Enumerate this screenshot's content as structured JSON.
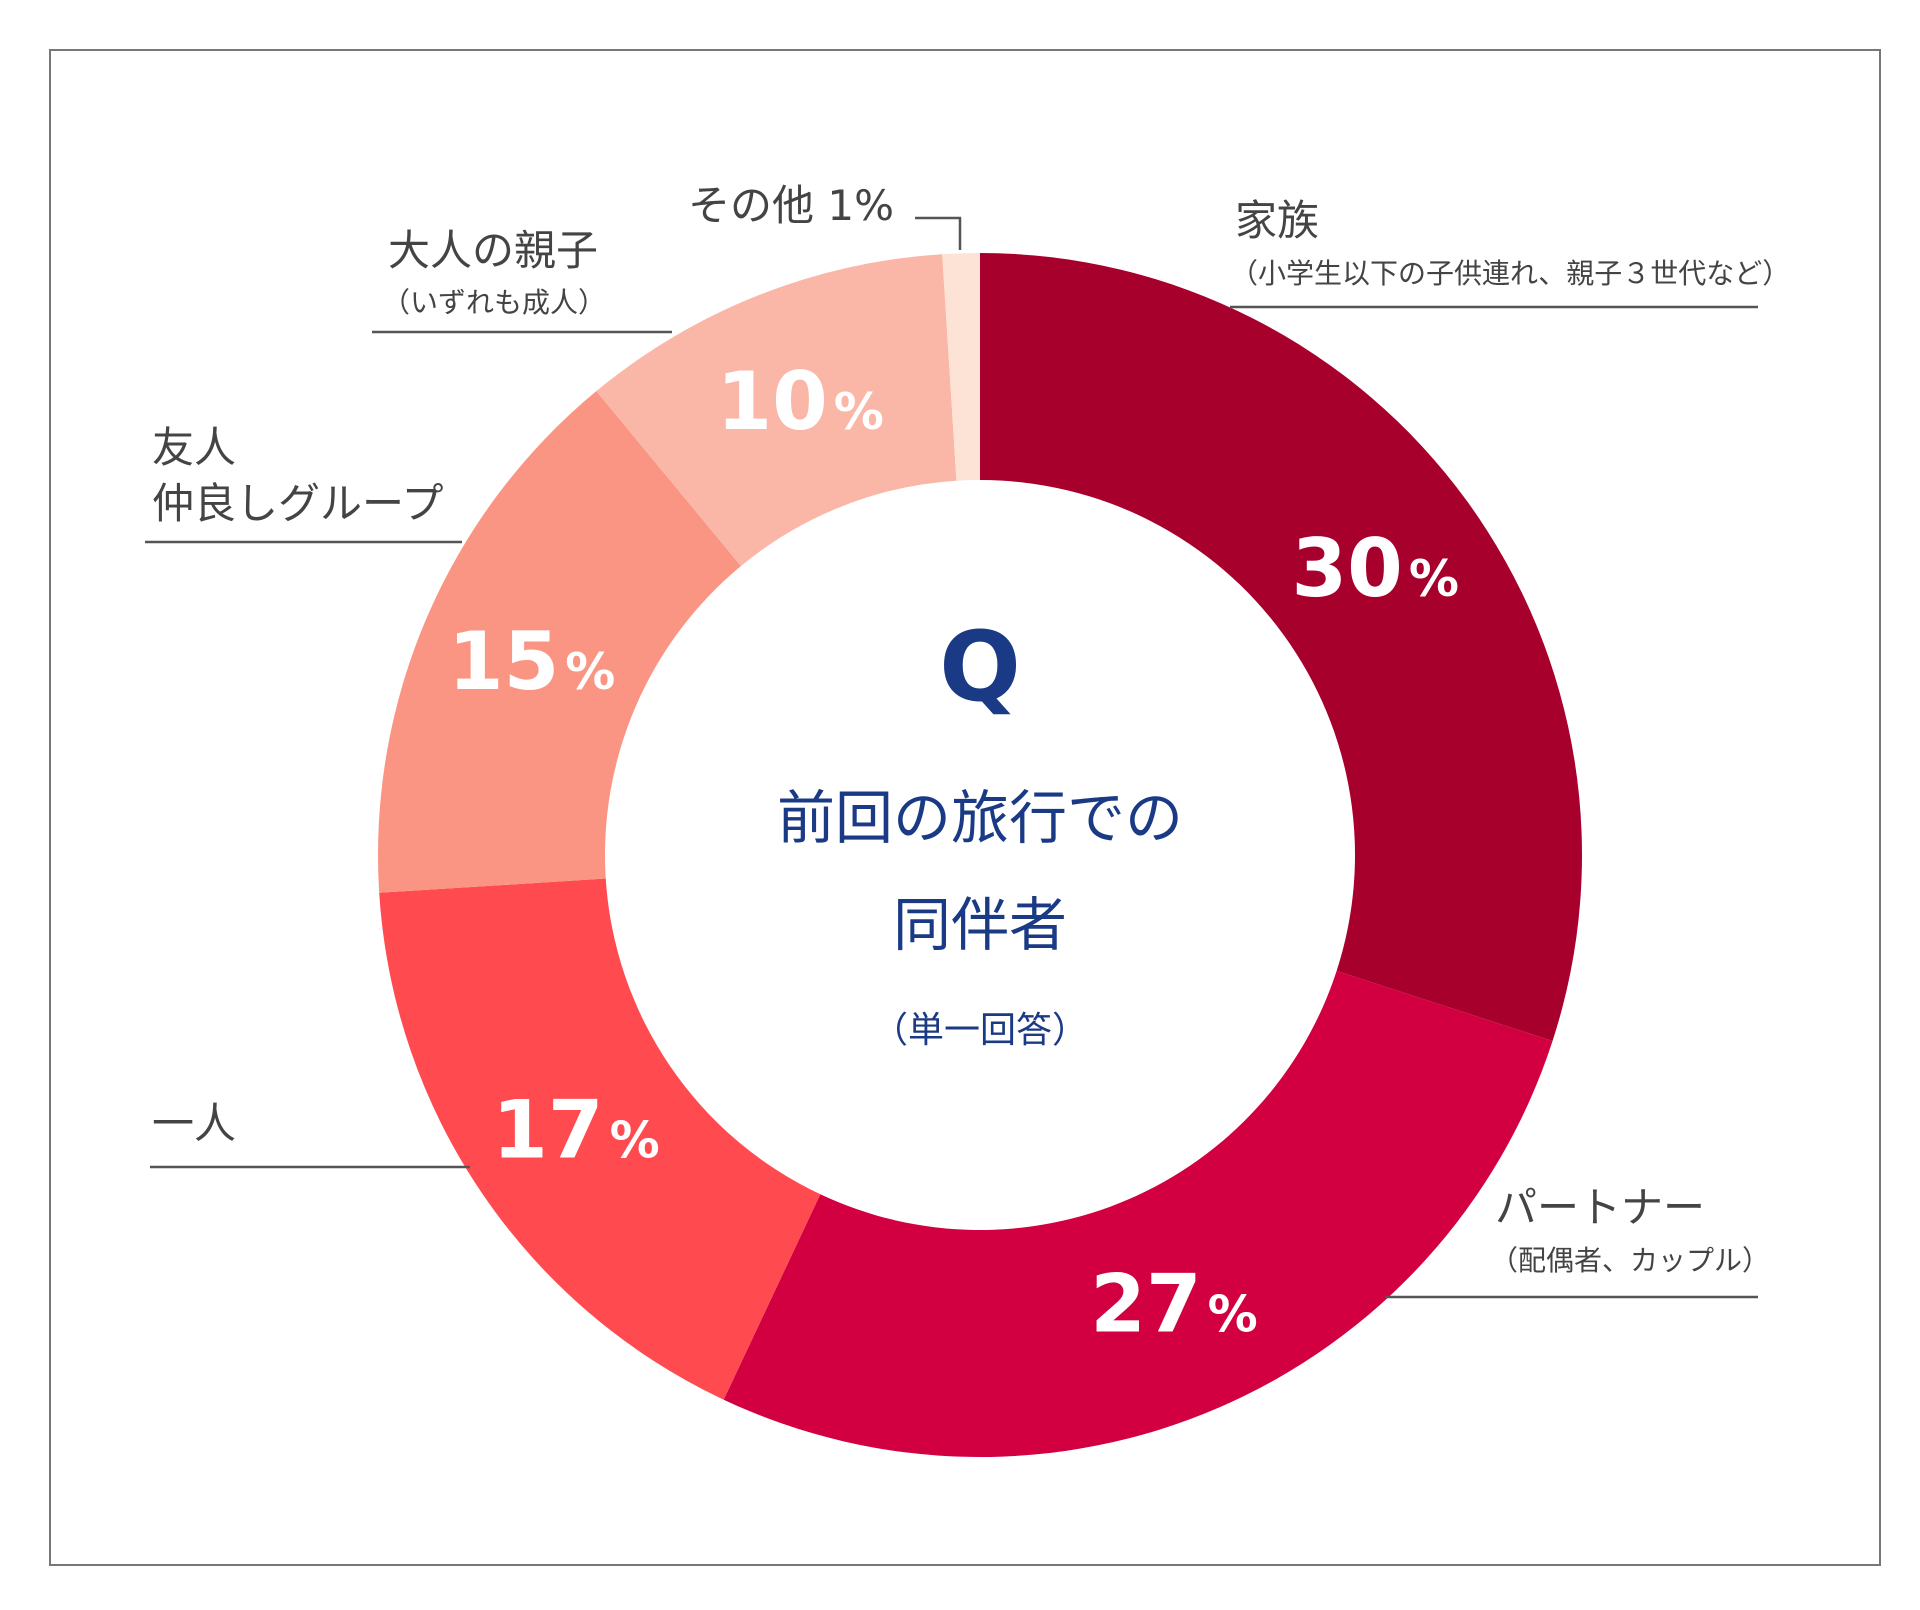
{
  "chart_data": {
    "type": "pie",
    "variant": "donut",
    "title": "前回の旅行での同伴者",
    "center": {
      "mark": "Q",
      "title_lines": [
        "前回の旅行での",
        "同伴者"
      ],
      "note": "（単一回答）"
    },
    "unit": "%",
    "slices": [
      {
        "key": "family",
        "label": "家族",
        "sublabel": "（小学生以下の子供連れ、親子３世代など）",
        "value": 30,
        "color": "#a8002c",
        "value_text": "30"
      },
      {
        "key": "partner",
        "label": "パートナー",
        "sublabel": "（配偶者、カップル）",
        "value": 27,
        "color": "#d20040",
        "value_text": "27"
      },
      {
        "key": "alone",
        "label": "一人",
        "sublabel": "",
        "value": 17,
        "color": "#ff4a50",
        "value_text": "17"
      },
      {
        "key": "friends",
        "label": "友人",
        "label_line2": "仲良しグループ",
        "sublabel": "",
        "value": 15,
        "color": "#fa9583",
        "value_text": "15"
      },
      {
        "key": "adult_parent_child",
        "label": "大人の親子",
        "sublabel": "（いずれも成人）",
        "value": 10,
        "color": "#fab7a7",
        "value_text": "10"
      },
      {
        "key": "other",
        "label": "その他 1%",
        "sublabel": "",
        "value": 1,
        "color": "#fde3d5",
        "value_text": ""
      }
    ]
  }
}
